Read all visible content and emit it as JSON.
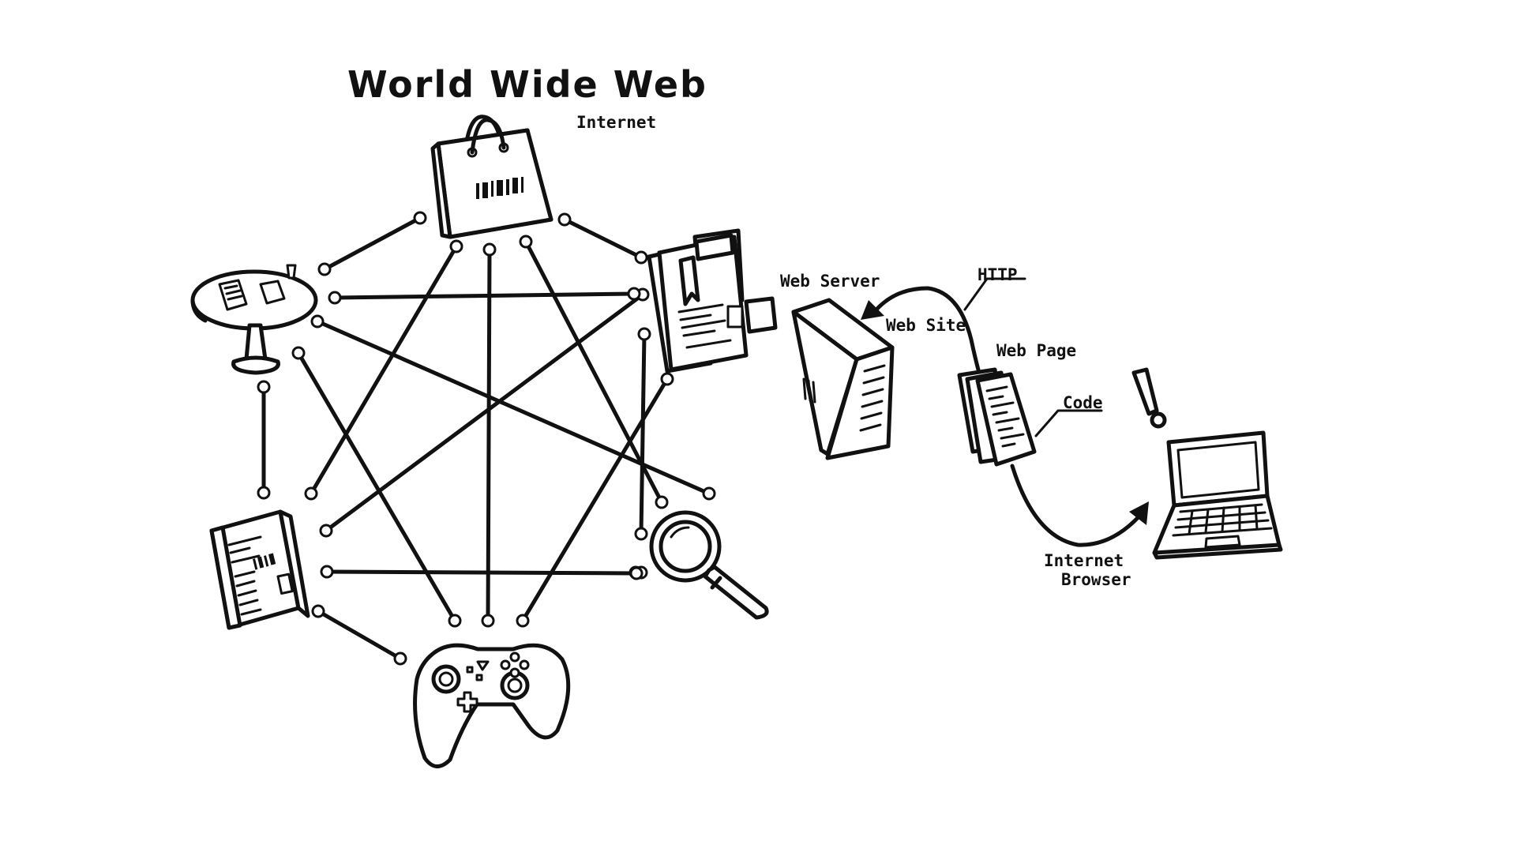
{
  "title": "World Wide Web",
  "labels": {
    "internet": "Internet",
    "web_server": "Web Server",
    "web_site": "Web Site",
    "http": "HTTP",
    "web_page": "Web Page",
    "code": "Code",
    "internet_browser_line1": "Internet",
    "internet_browser_line2": "Browser",
    "exclamation": "!"
  },
  "nodes": [
    {
      "id": "shopping",
      "icon": "shopping-bag-icon"
    },
    {
      "id": "news",
      "icon": "newspaper-icon"
    },
    {
      "id": "search",
      "icon": "magnifier-icon"
    },
    {
      "id": "gaming",
      "icon": "gamepad-icon"
    },
    {
      "id": "books",
      "icon": "book-icon"
    },
    {
      "id": "social",
      "icon": "cafe-table-icon"
    }
  ],
  "edges": [
    [
      "shopping",
      "news"
    ],
    [
      "shopping",
      "search"
    ],
    [
      "shopping",
      "gaming"
    ],
    [
      "shopping",
      "books"
    ],
    [
      "shopping",
      "social"
    ],
    [
      "news",
      "search"
    ],
    [
      "news",
      "gaming"
    ],
    [
      "news",
      "books"
    ],
    [
      "news",
      "social"
    ],
    [
      "search",
      "gaming"
    ],
    [
      "search",
      "books"
    ],
    [
      "search",
      "social"
    ],
    [
      "gaming",
      "books"
    ],
    [
      "gaming",
      "social"
    ],
    [
      "books",
      "social"
    ]
  ],
  "colors": {
    "ink": "#111111",
    "paper": "#ffffff"
  }
}
